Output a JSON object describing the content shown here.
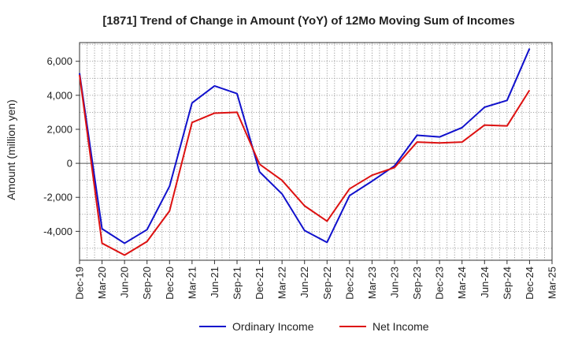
{
  "chart_data": {
    "type": "line",
    "title": "[1871]  Trend of Change in Amount (YoY) of 12Mo Moving Sum of Incomes",
    "xlabel": "",
    "ylabel": "Amount (million yen)",
    "x_ticks": [
      "Dec-19",
      "Mar-20",
      "Jun-20",
      "Sep-20",
      "Dec-20",
      "Mar-21",
      "Jun-21",
      "Sep-21",
      "Dec-21",
      "Mar-22",
      "Jun-22",
      "Sep-22",
      "Dec-22",
      "Mar-23",
      "Jun-23",
      "Sep-23",
      "Dec-23",
      "Mar-24",
      "Jun-24",
      "Sep-24",
      "Dec-24",
      "Mar-25"
    ],
    "y_ticks": [
      -4000,
      -2000,
      0,
      2000,
      4000,
      6000
    ],
    "y_tick_labels": [
      "-4,000",
      "-2,000",
      "0",
      "2,000",
      "4,000",
      "6,000"
    ],
    "ylim": [
      -5700,
      7100
    ],
    "grid": true,
    "legend_position": "bottom",
    "series": [
      {
        "name": "Ordinary Income",
        "color": "#1010cc",
        "values": [
          5300,
          -3850,
          -4700,
          -3900,
          -1350,
          3550,
          4550,
          4100,
          -500,
          -1800,
          -3950,
          -4650,
          -1900,
          -1050,
          -150,
          1650,
          1550,
          2100,
          3300,
          3700,
          6750
        ]
      },
      {
        "name": "Net Income",
        "color": "#dd1111",
        "values": [
          5200,
          -4700,
          -5400,
          -4600,
          -2800,
          2400,
          2950,
          3000,
          -50,
          -1000,
          -2500,
          -3400,
          -1500,
          -700,
          -250,
          1250,
          1200,
          1250,
          2250,
          2200,
          4300
        ]
      }
    ]
  }
}
